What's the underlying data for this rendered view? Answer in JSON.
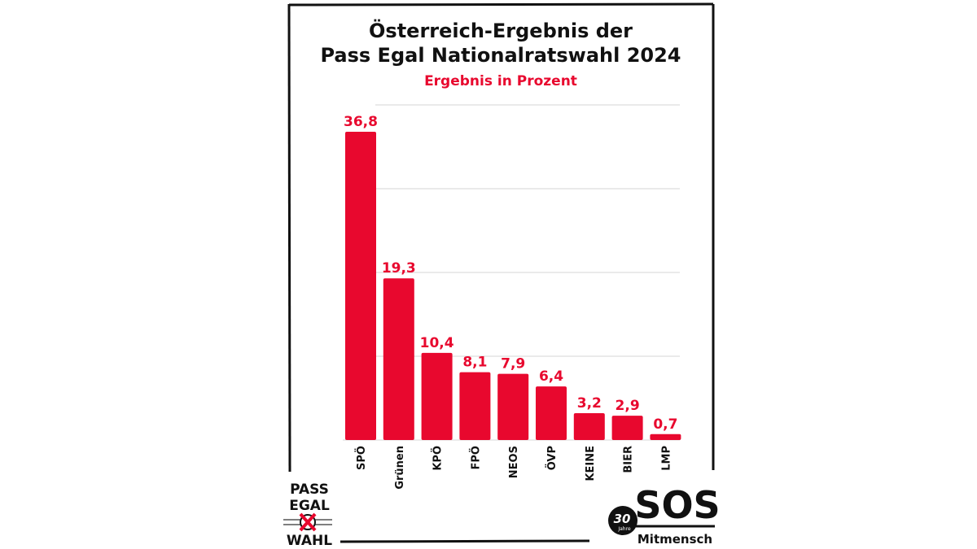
{
  "chart_data": {
    "type": "bar",
    "title_lines": [
      "Österreich-Ergebnis der",
      "Pass Egal Nationalratswahl 2024"
    ],
    "subtitle": "Ergebnis in Prozent",
    "categories": [
      "SPÖ",
      "Grünen",
      "KPÖ",
      "FPÖ",
      "NEOS",
      "ÖVP",
      "KEINE",
      "BIER",
      "LMP"
    ],
    "values": [
      36.8,
      19.3,
      10.4,
      8.1,
      7.9,
      6.4,
      3.2,
      2.9,
      0.7
    ],
    "value_labels": [
      "36,8",
      "19,3",
      "10,4",
      "8,1",
      "7,9",
      "6,4",
      "3,2",
      "2,9",
      "0,7"
    ],
    "ylim": [
      0,
      40
    ],
    "gridlines": [
      10,
      20,
      30,
      40
    ],
    "grid": true,
    "bar_color": "#e8082e",
    "label_color": "#e8082e"
  },
  "logos": {
    "pass_egal": [
      "PASS",
      "EGAL",
      "WAHL"
    ],
    "sos": {
      "main": "SOS",
      "sub": "Mitmensch",
      "badge_number": "30",
      "badge_text": "Jahre"
    }
  }
}
